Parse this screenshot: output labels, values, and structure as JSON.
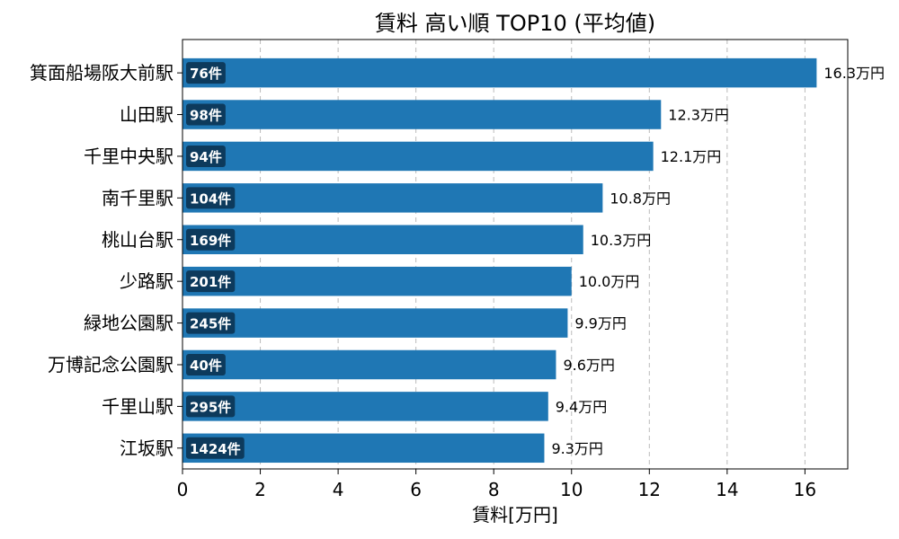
{
  "chart_data": {
    "type": "bar",
    "orientation": "horizontal",
    "title": "賃料 高い順 TOP10 (平均値)",
    "xlabel": "賃料[万円]",
    "ylabel": "",
    "xlim": [
      0,
      17.1
    ],
    "xticks": [
      0,
      2,
      4,
      6,
      8,
      10,
      12,
      14,
      16
    ],
    "grid": "x-dashed",
    "categories": [
      "箕面船場阪大前駅",
      "山田駅",
      "千里中央駅",
      "南千里駅",
      "桃山台駅",
      "少路駅",
      "緑地公園駅",
      "万博記念公園駅",
      "千里山駅",
      "江坂駅"
    ],
    "values": [
      16.3,
      12.3,
      12.1,
      10.8,
      10.3,
      10.0,
      9.9,
      9.6,
      9.4,
      9.3
    ],
    "value_labels": [
      "16.3万円",
      "12.3万円",
      "12.1万円",
      "10.8万円",
      "10.3万円",
      "10.0万円",
      "9.9万円",
      "9.6万円",
      "9.4万円",
      "9.3万円"
    ],
    "counts": [
      "76件",
      "98件",
      "94件",
      "104件",
      "169件",
      "201件",
      "245件",
      "40件",
      "295件",
      "1424件"
    ],
    "bar_color": "#1f77b4",
    "count_badge_color": "#0d3a5c"
  }
}
